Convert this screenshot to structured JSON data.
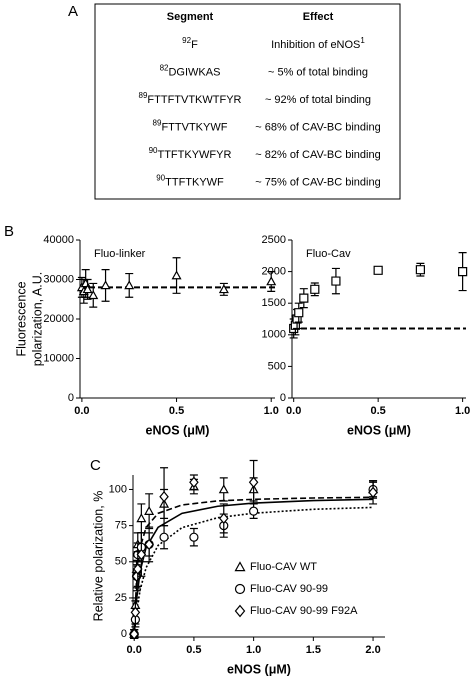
{
  "panel_labels": [
    "A",
    "B",
    "C"
  ],
  "table": {
    "header": [
      "Segment",
      "Effect"
    ],
    "rows": [
      {
        "segment_sup": "92",
        "segment": "F",
        "effect": "Inhibition of eNOS",
        "effect_sup": "1"
      },
      {
        "segment_sup": "82",
        "segment": "DGIWKAS",
        "effect": "~ 5% of total binding"
      },
      {
        "segment_sup": "89",
        "segment": "FTTFTVTKWTFYR",
        "effect": "~ 92% of total binding"
      },
      {
        "segment_sup": "89",
        "segment": "FTTVTKYWF",
        "effect": "~ 68% of CAV-BC binding"
      },
      {
        "segment_sup": "90",
        "segment": "TTFTKYWFYR",
        "effect": "~ 82% of CAV-BC binding"
      },
      {
        "segment_sup": "90",
        "segment": "TTFTKYWF",
        "effect": "~ 75% of CAV-BC binding"
      }
    ]
  },
  "chart_data": [
    {
      "type": "scatter",
      "title": "Fluo-linker",
      "ylabel": [
        "Fluorescence",
        "polarization, A.U."
      ],
      "xlabel": "eNOS (μM)",
      "xlim": [
        -0.01,
        1.02
      ],
      "xticks": [
        {
          "value": 0,
          "label": "0.0"
        },
        0.5,
        {
          "value": 1,
          "label": "1.0"
        }
      ],
      "ylim": [
        0,
        40000
      ],
      "yticks": [
        0,
        10000,
        20000,
        30000,
        40000
      ],
      "hline": 28000,
      "x": [
        0,
        0.01,
        0.02,
        0.03,
        0.06,
        0.125,
        0.25,
        0.5,
        0.75,
        1
      ],
      "series": [
        {
          "marker": "triangle",
          "color": "#000000",
          "values": [
            28000,
            27000,
            29000,
            27500,
            26000,
            28500,
            28500,
            31000,
            27500,
            29500
          ],
          "errors": [
            2500,
            3000,
            3500,
            2500,
            3000,
            4000,
            3000,
            4500,
            1500,
            2500
          ]
        }
      ]
    },
    {
      "type": "scatter",
      "title": "Fluo-Cav",
      "xlabel": "eNOS (μM)",
      "xlim": [
        -0.01,
        1.02
      ],
      "xticks": [
        {
          "value": 0,
          "label": "0.0"
        },
        0.5,
        {
          "value": 1,
          "label": "1.0"
        }
      ],
      "ylim": [
        0,
        2500
      ],
      "yticks": [
        0,
        500,
        1000,
        1500,
        2000,
        2500
      ],
      "hline": 1100,
      "x": [
        0,
        0.01,
        0.02,
        0.03,
        0.06,
        0.125,
        0.25,
        0.5,
        0.75,
        1
      ],
      "series": [
        {
          "marker": "square",
          "color": "#000000",
          "values": [
            1100,
            1150,
            1250,
            1350,
            1580,
            1720,
            1850,
            2020,
            2030,
            2000
          ],
          "errors": [
            150,
            150,
            150,
            150,
            150,
            100,
            200,
            50,
            100,
            300
          ]
        }
      ]
    },
    {
      "type": "scatter",
      "ylabel": "Relative polarization, %",
      "xlabel": "eNOS (μM)",
      "xlim": [
        -0.01,
        2.1
      ],
      "xticks": [
        {
          "value": 0,
          "label": "0.0"
        },
        0.5,
        {
          "value": 1,
          "label": "1.0"
        },
        1.5,
        {
          "value": 2,
          "label": "2.0"
        }
      ],
      "ylim": [
        -2,
        110
      ],
      "yticks": [
        0,
        25,
        50,
        75,
        100
      ],
      "x": [
        0,
        0.01,
        0.02,
        0.03,
        0.06,
        0.125,
        0.25,
        0.5,
        0.75,
        1,
        2
      ],
      "legend": "lower right",
      "fits": [
        {
          "style": "dashed",
          "x": [
            0,
            0.02,
            0.05,
            0.1,
            0.2,
            0.4,
            0.7,
            1,
            1.5,
            2
          ],
          "values": [
            0,
            38.4,
            60,
            73.8,
            83.5,
            89.3,
            92.1,
            93.2,
            94.1,
            94.6
          ]
        },
        {
          "style": "solid",
          "x": [
            0,
            0.02,
            0.05,
            0.1,
            0.2,
            0.4,
            0.7,
            1,
            1.5,
            2
          ],
          "values": [
            0,
            24,
            43.6,
            60,
            73.8,
            83.5,
            88.4,
            90.6,
            92.3,
            93.2
          ]
        },
        {
          "style": "dotted",
          "x": [
            0,
            0.02,
            0.05,
            0.1,
            0.2,
            0.4,
            0.7,
            1,
            1.5,
            2
          ],
          "values": [
            0,
            15.3,
            30.7,
            46,
            61.3,
            73.6,
            80.5,
            83.6,
            86.3,
            87.6
          ]
        }
      ],
      "series": [
        {
          "name": "Fluo-CAV WT",
          "marker": "triangle",
          "color": "#000000",
          "values": [
            0,
            20,
            45,
            62,
            80,
            85,
            90,
            102,
            100,
            100,
            100
          ],
          "errors": [
            3,
            5,
            6,
            8,
            10,
            12,
            10,
            5,
            8,
            8,
            5
          ]
        },
        {
          "name": "Fluo-CAV 90-99",
          "marker": "circle",
          "color": "#000000",
          "values": [
            0,
            10,
            40,
            55,
            60,
            62,
            67,
            67,
            75,
            85,
            100
          ],
          "errors": [
            3,
            5,
            8,
            8,
            10,
            8,
            8,
            6,
            8,
            5,
            6
          ]
        },
        {
          "name": "Fluo-CAV 90-99 F92A",
          "marker": "diamond",
          "color": "#000000",
          "values": [
            0,
            15,
            40,
            45,
            55,
            62,
            95,
            105,
            80,
            105,
            98
          ],
          "errors": [
            3,
            8,
            10,
            12,
            15,
            12,
            20,
            5,
            10,
            15,
            8
          ]
        }
      ]
    }
  ]
}
